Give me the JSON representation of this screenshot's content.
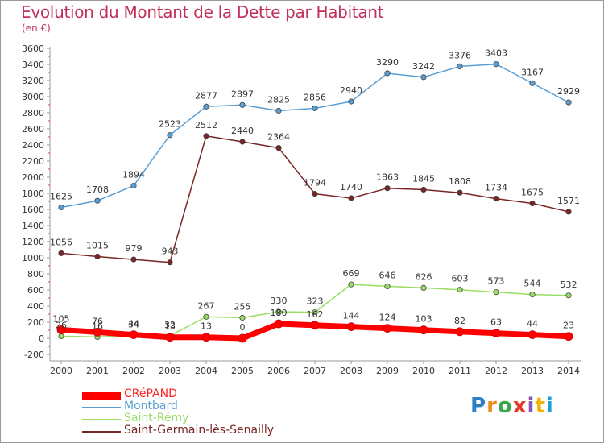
{
  "title": "Evolution du Montant de la Dette par Habitant",
  "unit": "(en €)",
  "logo": {
    "letters": [
      "P",
      "r",
      "o",
      "x",
      "i",
      "t",
      "i"
    ]
  },
  "chart_data": {
    "type": "line",
    "title": "Evolution du Montant de la Dette par Habitant",
    "ylabel": "(en €)",
    "xlabel": "",
    "x": [
      2000,
      2001,
      2002,
      2003,
      2004,
      2005,
      2006,
      2007,
      2008,
      2009,
      2010,
      2011,
      2012,
      2013,
      2014
    ],
    "ylim": [
      -200,
      3600
    ],
    "yticks": [
      -200,
      0,
      200,
      400,
      600,
      800,
      1000,
      1200,
      1400,
      1600,
      1800,
      2000,
      2200,
      2400,
      2600,
      2800,
      3000,
      3200,
      3400,
      3600
    ],
    "grid": false,
    "legend": "bottom-left",
    "series": [
      {
        "name": "CRéPAND",
        "color": "#ff0000",
        "values": [
          105,
          76,
          44,
          13,
          13,
          0,
          180,
          162,
          144,
          124,
          103,
          82,
          63,
          44,
          23
        ]
      },
      {
        "name": "Montbard",
        "color": "#5a9fd4",
        "values": [
          1625,
          1708,
          1894,
          2523,
          2877,
          2897,
          2825,
          2856,
          2940,
          3290,
          3242,
          3376,
          3403,
          3167,
          2929
        ]
      },
      {
        "name": "Saint-Rémy",
        "color": "#99dd66",
        "values": [
          26,
          16,
          34,
          32,
          267,
          255,
          330,
          323,
          669,
          646,
          626,
          603,
          573,
          544,
          532
        ]
      },
      {
        "name": "Saint-Germain-lès-Senailly",
        "color": "#7a2525",
        "values": [
          1056,
          1015,
          979,
          943,
          2512,
          2440,
          2364,
          1794,
          1740,
          1863,
          1845,
          1808,
          1734,
          1675,
          1571
        ]
      }
    ]
  }
}
